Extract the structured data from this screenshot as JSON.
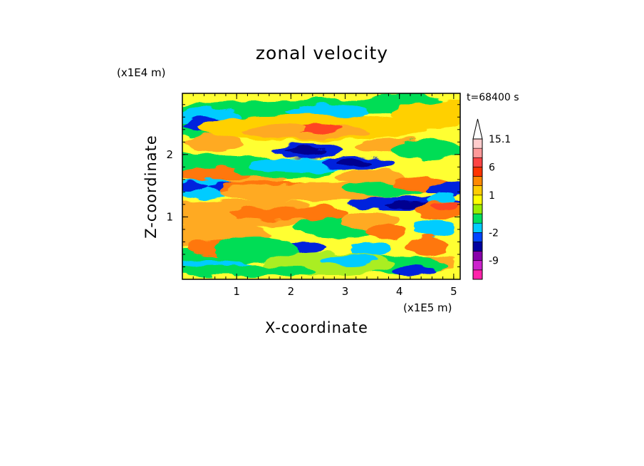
{
  "chart_data": {
    "type": "heatmap",
    "title": "zonal velocity",
    "xlabel": "X-coordinate",
    "ylabel": "Z-coordinate",
    "x_unit": "(x1E5 m)",
    "y_unit": "(x1E4 m)",
    "time_label": "t=68400 s",
    "xlim": [
      0,
      5.12
    ],
    "ylim": [
      0,
      2.98
    ],
    "x_ticks": [
      1,
      2,
      3,
      4,
      5
    ],
    "y_ticks": [
      1,
      2
    ],
    "colorbar": {
      "tick_labels": [
        "15.1",
        "6",
        "1",
        "-2",
        "-9"
      ],
      "levels": [
        "-12",
        "-9",
        "-6",
        "-4",
        "-2",
        "-1",
        "0",
        "0.5",
        "1",
        "2",
        "4",
        "6",
        "9",
        "12",
        "15.1"
      ],
      "colors": [
        "#ff22aa",
        "#cc22cc",
        "#8800aa",
        "#0000a0",
        "#0044ff",
        "#00ccff",
        "#00e060",
        "#99ee00",
        "#ffff00",
        "#ffcc00",
        "#ff8800",
        "#ff3300",
        "#ff4444",
        "#ff9999",
        "#ffcccc"
      ]
    },
    "field_colors": {
      "background": "#ffff33",
      "bands": [
        "#00dd55",
        "#00ccff",
        "#ffaa22",
        "#ff7711",
        "#0022dd",
        "#000090",
        "#ffd000",
        "#ff4422",
        "#aaee22"
      ]
    }
  }
}
